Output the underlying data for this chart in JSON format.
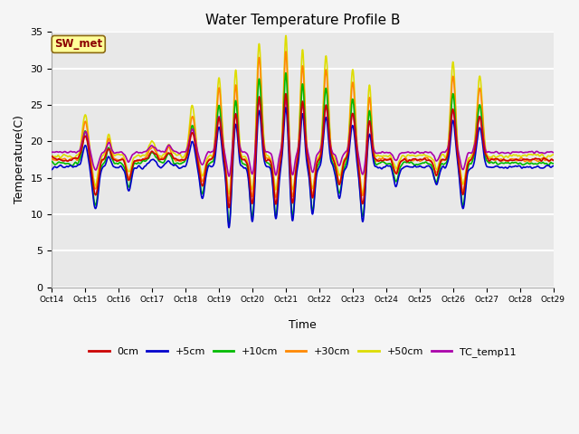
{
  "title": "Water Temperature Profile B",
  "xlabel": "Time",
  "ylabel": "Temperature(C)",
  "ylim": [
    0,
    35
  ],
  "xlim": [
    0,
    15
  ],
  "background_color": "#f5f5f5",
  "plot_bg_color": "#e8e8e8",
  "grid_color": "#ffffff",
  "annotation_text": "SW_met",
  "annotation_color": "#8b0000",
  "annotation_bg": "#ffff99",
  "xtick_labels": [
    "Oct 14",
    "Oct 15",
    "Oct 16",
    "Oct 17",
    "Oct 18",
    "Oct 19",
    "Oct 20",
    "Oct 21",
    "Oct 22",
    "Oct 23",
    "Oct 24",
    "Oct 25",
    "Oct 26",
    "Oct 27",
    "Oct 28",
    "Oct 29"
  ],
  "series": {
    "0cm": {
      "color": "#cc0000",
      "lw": 1.2
    },
    "+5cm": {
      "color": "#0000cc",
      "lw": 1.2
    },
    "+10cm": {
      "color": "#00bb00",
      "lw": 1.2
    },
    "+30cm": {
      "color": "#ff8800",
      "lw": 1.2
    },
    "+50cm": {
      "color": "#dddd00",
      "lw": 1.2
    },
    "TC_temp11": {
      "color": "#aa00aa",
      "lw": 1.2
    }
  }
}
